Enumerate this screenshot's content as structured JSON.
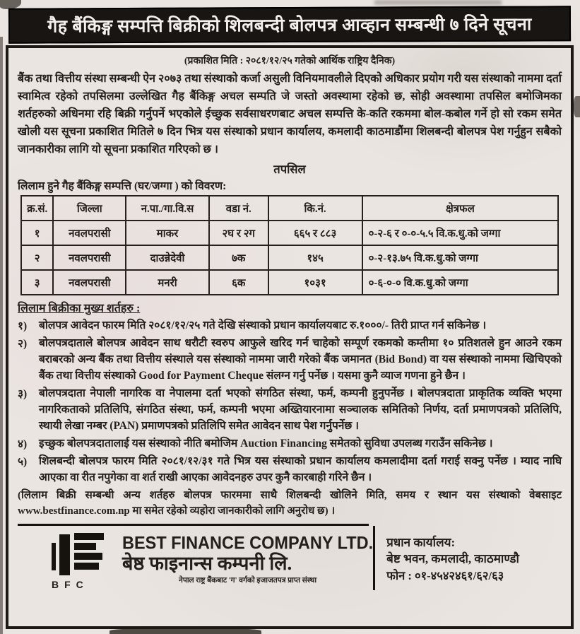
{
  "banner": {
    "title": "गैह बैंकिङ्ग सम्पत्ति बिक्रीको शिलबन्दी बोलपत्र आव्हान सम्बन्धी ७ दिने सूचना"
  },
  "notice": {
    "published_line": "(प्रकाशित मिति : २०८१/१२/२५ गतेको आर्थिक राष्ट्रिय दैनिक)",
    "intro_paragraph": "बैंक तथा वित्तीय संस्था सम्बन्धी ऐन २०७३ तथा संस्थाको कर्जा असुली विनियमावलीले दिएको अधिकार प्रयोग गरी यस संस्थाको नाममा दर्ता स्वामित्व रहेको तपसिलमा उल्लेखित गैह बैंकिङ्ग अचल सम्पति जे जस्तो अवस्थामा रहेको छ, सोही अवस्थामा तपसिल बमोजिमका शर्तहरुको अधिनमा रहि बिक्री गर्नुपर्ने भएकोले ईच्छुक सर्वसाधरणबाट अचल सम्पत्ति के-कति रकममा बोल-कबोल गर्ने हो सो रकम समेत खोली यस सूचना प्रकाशित मितिले ७ दिन भित्र यस संस्थाको प्रधान कार्यालय, कमलादी काठमाडौंमा शिलबन्दी बोलपत्र पेश गर्नुहुन सबैको जानकारीका लागि यो सूचना प्रकाशित गरिएको छ ।",
    "tapasil_heading": "तपसिल",
    "table_caption": "लिलाम हुने गैह बैंकिङ्ग सम्पत्ति (घर/जग्गा ) को विवरण:",
    "table": {
      "headers": [
        "क्र.सं.",
        "जिल्ला",
        "न.पा./गा.वि.स",
        "वडा नं.",
        "कि.नं.",
        "क्षेत्रफल"
      ],
      "rows": [
        [
          "१",
          "नवलपरासी",
          "माकर",
          "२घ र २ग",
          "६६५ र ८८३",
          "०-२-६ र ०-०-५.५ वि.क.धु.को जग्गा"
        ],
        [
          "२",
          "नवलपरासी",
          "दाउन्नेदेवी",
          "७क",
          "१४५",
          "०-२-१३.७५ वि.क.धु.को जग्गा"
        ],
        [
          "३",
          "नवलपरासी",
          "मनरी",
          "६क",
          "१०३१",
          "०-६-०-० वि.क.धु.को जग्गा"
        ]
      ]
    },
    "conditions_heading": "लिलाम बिक्रीका मुख्य शर्तहरु :",
    "conditions": [
      {
        "num": "१)",
        "text": "बोलपत्र आवेदन फारम मिति २०८१/१२/२५ गते देखि संस्थाको प्रधान कार्यालयबाट रु.१०००/- तिरी प्राप्त गर्न सकिनेछ ।"
      },
      {
        "num": "२)",
        "text": "बोलपत्रदाताले बोलपत्र आवेदन साथ धरौटी स्वरुप आफुले खरिद गर्न चाहेको सम्पूर्ण रकमको कम्तीमा १० प्रतिशतले हुन आउने रकम बराबरको अन्य बैंक तथा वित्तीय संस्थाले यस संस्थाको नाममा जारी गरेको बैंक जमानत (Bid Bond) वा यस संस्थाको नाममा खिचिएको बैंक तथा वित्तीय संस्थाको Good for Payment Cheque संलग्न गर्नु पर्नेछ । यसमा कुनै व्याज गणना हुने छैन ।"
      },
      {
        "num": "३)",
        "text": "बोलपत्रदाता नेपाली नागरिक वा नेपालमा दर्ता भएको संगठित संस्था, फर्म, कम्पनी हुनुपर्नेछ । बोलपत्रदाता प्राकृतिक व्यक्ति भएमा नागरिकताको प्रतिलिपि, संगठित संस्था, फर्म, कम्पनी भएमा अख्तियारनामा सञ्चालक समितिको निर्णय, दर्ता प्रमाणपत्रको प्रतिलिपि, स्थायी लेखा नम्बर (PAN) प्रमाणपत्रको प्रतिलिपि समेत आवेदन साथ पेश गर्नुपर्नेछ ।"
      },
      {
        "num": "४)",
        "text": "इच्छुक बोलपत्रदातालाई यस संस्थाको नीति बमोजिम Auction Financing समेतको सुविधा उपलब्ध गराउँन सकिनेछ ।"
      },
      {
        "num": "५)",
        "text": "शिलबन्दी बोलपत्र फारम मिति २०८१/१२/३१ गते भित्र यस संस्थाको प्रधान कार्यालय कमलादीमा दर्ता गराई सक्नु पर्नेछ । म्याद नाघि आएका वा रीत नपुगेका वा शर्त राखी आएका आवेदनहरु उपर कुनै कारबाही गरिने छैन ।"
      }
    ],
    "closing_note": "(लिलाम बिक्री सम्बन्धी अन्य शर्तहरु बोलपत्र फारममा साथै शिलबन्दी खोलिने मिति, समय र स्थान यस संस्थाको वेबसाइट www.bestfinance.com.np मा समेत रहेको व्यहोरा जानकारीको लागि अनुरोध छ) ।"
  },
  "footer": {
    "logo_text": "BFC",
    "company_name_en": "BEST FINANCE COMPANY LTD.",
    "company_name_np": "बेष्ठ फाइनान्स कम्पनी लि.",
    "license_line": "नेपाल राष्ट्र बैंकबाट 'ग' वर्गको इजाजतपत्र प्राप्त संस्था",
    "office_label": "प्रधान कार्यालय:",
    "office_address": "बेष्ट भवन, कमलादी, काठमाण्डौ",
    "phone": "फोन : ०१-४५४२४६१/६२/६३"
  },
  "colors": {
    "banner_bg": "#191512",
    "banner_text": "#f4f1ec",
    "paper": "#eae5e1",
    "ink": "#231e1a"
  }
}
